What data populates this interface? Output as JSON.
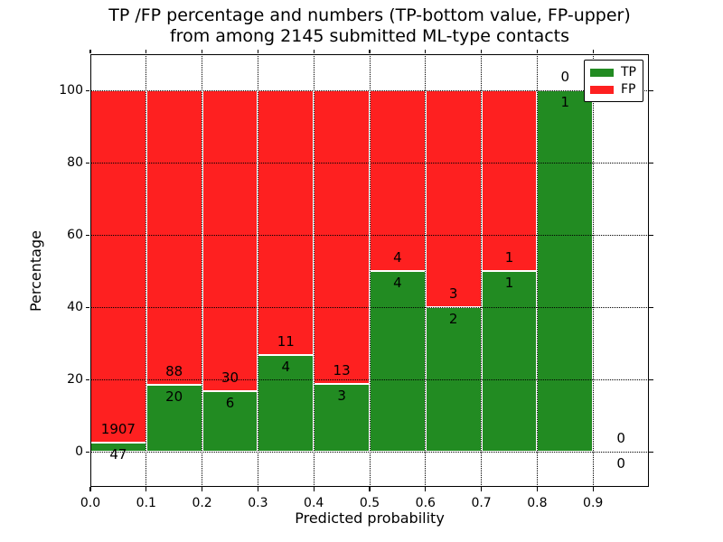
{
  "chart_data": {
    "type": "bar",
    "variant": "stacked-percentage",
    "title_lines": [
      "TP /FP percentage and numbers (TP-bottom value, FP-upper)",
      "from among 2145 submitted ML-type contacts"
    ],
    "xlabel": "Predicted probability",
    "ylabel": "Percentage",
    "xlim": [
      0.0,
      1.0
    ],
    "ylim": [
      -10,
      110
    ],
    "xticks": [
      "0.0",
      "0.1",
      "0.2",
      "0.3",
      "0.4",
      "0.5",
      "0.6",
      "0.7",
      "0.8",
      "0.9"
    ],
    "yticks": [
      "0",
      "20",
      "40",
      "60",
      "80",
      "100"
    ],
    "grid": {
      "on": true,
      "linestyle": "dotted",
      "color": "#000000"
    },
    "legend": {
      "position": "upper right"
    },
    "series": [
      {
        "name": "TP",
        "color": "#228b22",
        "values": [
          47,
          20,
          6,
          4,
          3,
          4,
          2,
          1,
          1,
          0
        ]
      },
      {
        "name": "FP",
        "color": "#fe2020",
        "values": [
          1907,
          88,
          30,
          11,
          13,
          4,
          3,
          1,
          0,
          0
        ]
      }
    ],
    "bins": [
      {
        "range": [
          0.0,
          0.1
        ],
        "tp": 47,
        "fp": 1907,
        "tp_pct": 2.41
      },
      {
        "range": [
          0.1,
          0.2
        ],
        "tp": 20,
        "fp": 88,
        "tp_pct": 18.52
      },
      {
        "range": [
          0.2,
          0.3
        ],
        "tp": 6,
        "fp": 30,
        "tp_pct": 16.67
      },
      {
        "range": [
          0.3,
          0.4
        ],
        "tp": 4,
        "fp": 11,
        "tp_pct": 26.67
      },
      {
        "range": [
          0.4,
          0.5
        ],
        "tp": 3,
        "fp": 13,
        "tp_pct": 18.75
      },
      {
        "range": [
          0.5,
          0.6
        ],
        "tp": 4,
        "fp": 4,
        "tp_pct": 50.0
      },
      {
        "range": [
          0.6,
          0.7
        ],
        "tp": 2,
        "fp": 3,
        "tp_pct": 40.0
      },
      {
        "range": [
          0.7,
          0.8
        ],
        "tp": 1,
        "fp": 1,
        "tp_pct": 50.0
      },
      {
        "range": [
          0.8,
          0.9
        ],
        "tp": 1,
        "fp": 0,
        "tp_pct": 100.0
      },
      {
        "range": [
          0.9,
          1.0
        ],
        "tp": 0,
        "fp": 0,
        "tp_pct": null
      }
    ],
    "total_contacts": 2145
  }
}
